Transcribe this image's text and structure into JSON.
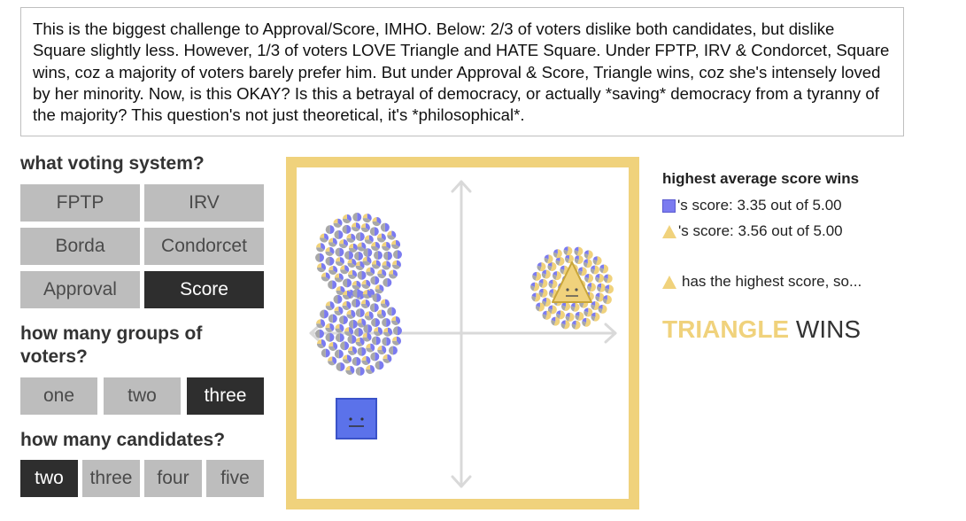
{
  "caption": "This is the biggest challenge to Approval/Score, IMHO. Below: 2/3 of voters dislike both candidates, but dislike Square slightly less. However, 1/3 of voters LOVE Triangle and HATE Square. Under FPTP, IRV & Condorcet, Square wins, coz a majority of voters barely prefer him. But under Approval & Score, Triangle wins, coz she's intensely loved by her minority. Now, is this OKAY? Is this a betrayal of democracy, or actually *saving* democracy from a tyranny of the majority? This question's not just theoretical, it's *philosophical*.",
  "voting_system": {
    "heading": "what voting system?",
    "options": [
      "FPTP",
      "IRV",
      "Borda",
      "Condorcet",
      "Approval",
      "Score"
    ],
    "selected": "Score"
  },
  "voter_groups": {
    "heading": "how many groups of voters?",
    "options": [
      "one",
      "two",
      "three"
    ],
    "selected": "three"
  },
  "candidates_count": {
    "heading": "how many candidates?",
    "options": [
      "two",
      "three",
      "four",
      "five"
    ],
    "selected": "two"
  },
  "results": {
    "title": "highest average score wins",
    "scores": [
      {
        "icon": "square-candidate-icon",
        "text": "'s score: 3.35 out of 5.00"
      },
      {
        "icon": "triangle-candidate-icon",
        "text": "'s score: 3.56 out of 5.00"
      }
    ],
    "highest_text": "has the highest score, so...",
    "winner_name": "TRIANGLE",
    "winner_suffix": " WINS"
  },
  "colors": {
    "square": "#7b7bf0",
    "triangle": "#f0d27c",
    "voter_gray": "#a8a8a8",
    "selected_button": "#2e2e2e",
    "button": "#bdbdbd"
  }
}
